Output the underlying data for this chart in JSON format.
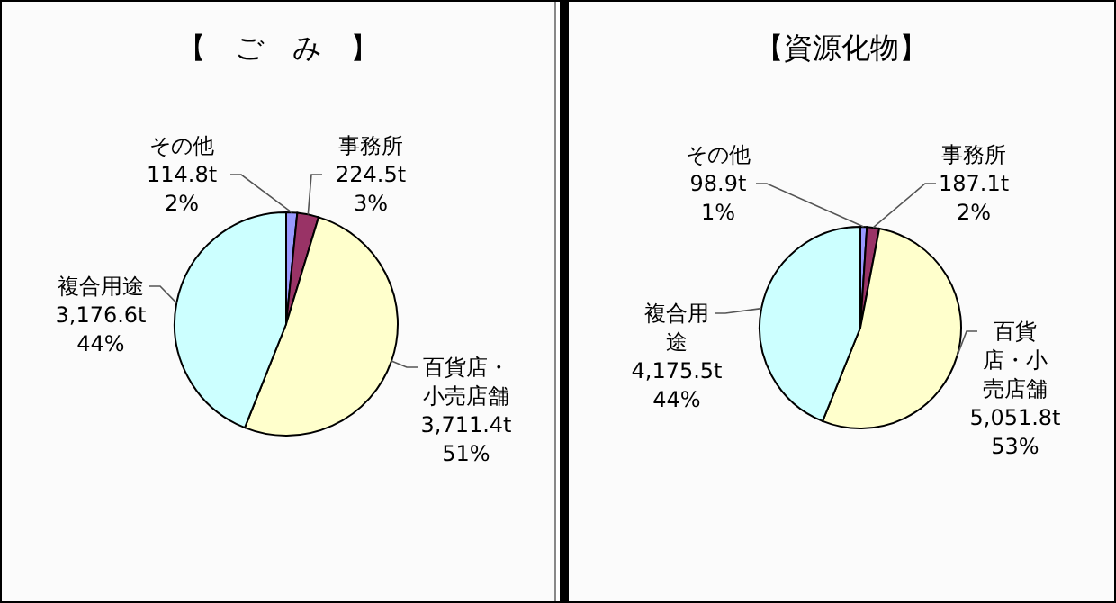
{
  "chart_data": [
    {
      "type": "pie",
      "title": "【　ご　み　】",
      "categories": [
        "その他",
        "事務所",
        "百貨店・小売店舗",
        "複合用途"
      ],
      "values": [
        114.8,
        224.5,
        3711.4,
        3176.6
      ],
      "colors": [
        "#9999ff",
        "#993366",
        "#ffffcc",
        "#ccffff"
      ],
      "value_labels": [
        "114.8t",
        "224.5t",
        "3,711.4t",
        "3,176.6t"
      ],
      "annotations": [
        "2%",
        "3%",
        "51%",
        "44%"
      ]
    },
    {
      "type": "pie",
      "title": "【資源化物】",
      "categories": [
        "その他",
        "事務所",
        "百貨店・小売店舗",
        "複合用途"
      ],
      "values": [
        98.9,
        187.1,
        5051.8,
        4175.5
      ],
      "colors": [
        "#9999ff",
        "#993366",
        "#ffffcc",
        "#ccffff"
      ],
      "value_labels": [
        "98.9t",
        "187.1t",
        "5,051.8t",
        "4,175.5t"
      ],
      "annotations": [
        "1%",
        "2%",
        "53%",
        "44%"
      ]
    }
  ]
}
